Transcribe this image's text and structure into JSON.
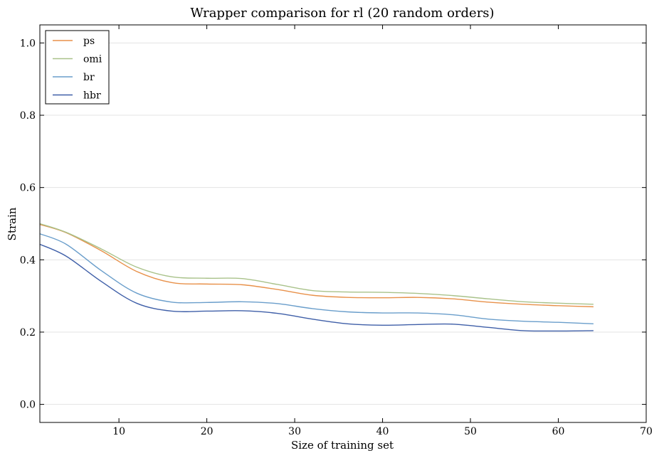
{
  "chart_data": {
    "type": "line",
    "title": "Wrapper comparison for rl (20 random orders)",
    "xlabel": "Size of training set",
    "ylabel": "Strain",
    "xlim": [
      1,
      70
    ],
    "ylim": [
      -0.05,
      1.05
    ],
    "xticks": [
      10,
      20,
      30,
      40,
      50,
      60,
      70
    ],
    "yticks": [
      0.0,
      0.2,
      0.4,
      0.6,
      0.8,
      1.0
    ],
    "ytick_labels": [
      "0.0",
      "0.2",
      "0.4",
      "0.6",
      "0.8",
      "1.0"
    ],
    "grid": "horizontal",
    "legend": "top-left",
    "x": [
      1,
      4,
      8,
      12,
      16,
      20,
      24,
      28,
      32,
      36,
      40,
      44,
      48,
      52,
      56,
      60,
      64
    ],
    "series": [
      {
        "name": "ps",
        "color": "#e8914a",
        "values": [
          0.498,
          0.475,
          0.425,
          0.368,
          0.337,
          0.333,
          0.331,
          0.318,
          0.302,
          0.296,
          0.295,
          0.296,
          0.292,
          0.283,
          0.277,
          0.273,
          0.27
        ]
      },
      {
        "name": "omi",
        "color": "#a9c28a",
        "values": [
          0.5,
          0.476,
          0.43,
          0.38,
          0.353,
          0.349,
          0.348,
          0.332,
          0.315,
          0.311,
          0.31,
          0.307,
          0.301,
          0.292,
          0.284,
          0.28,
          0.277
        ]
      },
      {
        "name": "br",
        "color": "#6a9ecb",
        "values": [
          0.472,
          0.443,
          0.37,
          0.308,
          0.283,
          0.282,
          0.284,
          0.279,
          0.265,
          0.256,
          0.253,
          0.253,
          0.248,
          0.236,
          0.23,
          0.227,
          0.223
        ]
      },
      {
        "name": "hbr",
        "color": "#3f5fa8",
        "values": [
          0.443,
          0.41,
          0.34,
          0.28,
          0.258,
          0.258,
          0.259,
          0.252,
          0.236,
          0.223,
          0.219,
          0.221,
          0.222,
          0.213,
          0.204,
          0.203,
          0.204
        ]
      }
    ]
  }
}
